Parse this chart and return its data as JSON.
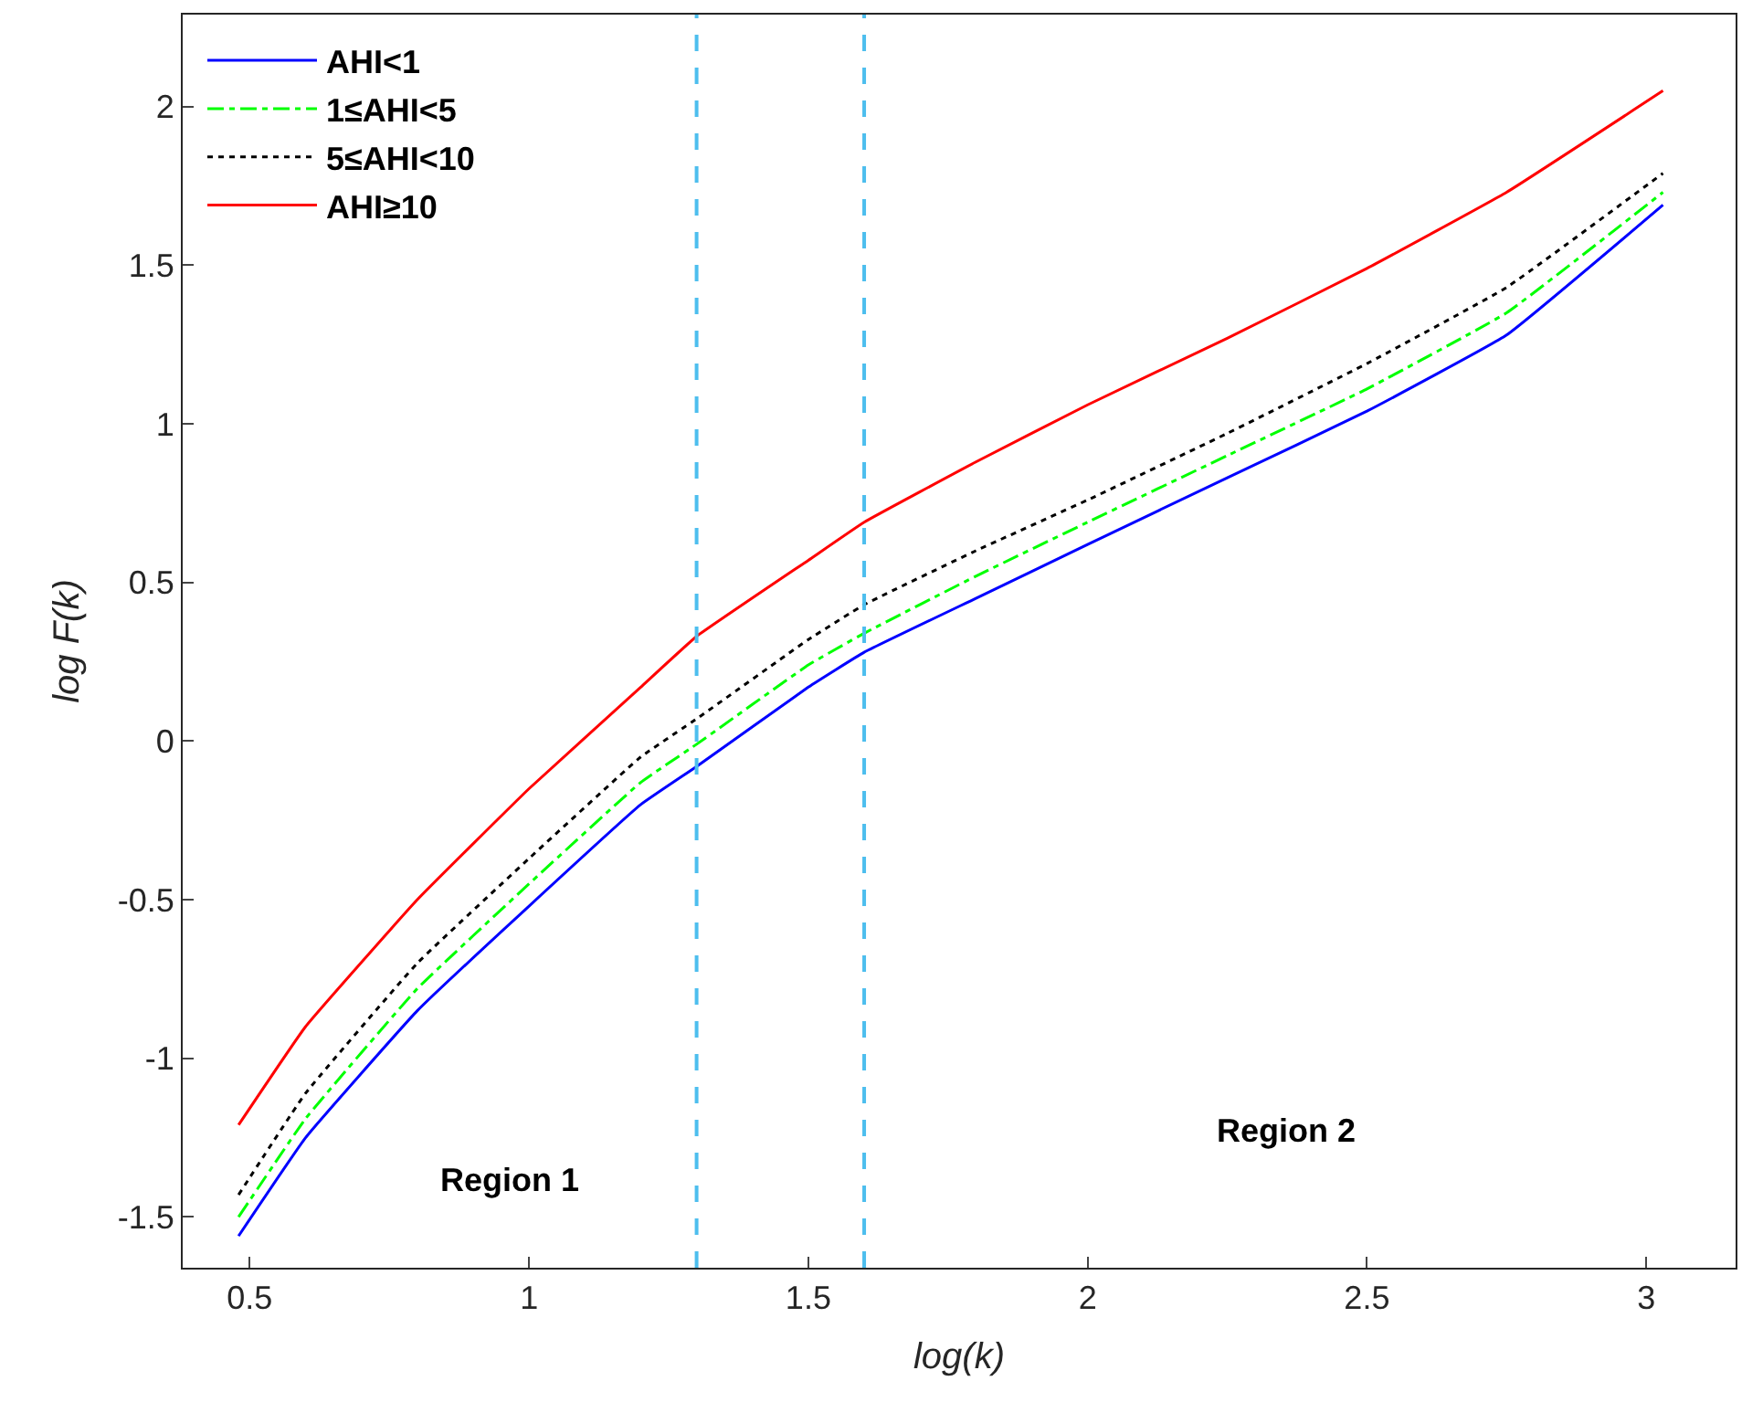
{
  "chart_data": {
    "type": "line",
    "xlabel": "log(k)",
    "ylabel": "log F(k)",
    "x": [
      0.48,
      0.6,
      0.8,
      1.0,
      1.2,
      1.3,
      1.5,
      1.6,
      1.8,
      2.0,
      2.25,
      2.5,
      2.75,
      3.03
    ],
    "series": [
      {
        "name": "AHI<1",
        "color": "#0000ff",
        "line_style": "solid",
        "values": [
          -1.56,
          -1.25,
          -0.85,
          -0.52,
          -0.2,
          -0.08,
          0.17,
          0.28,
          0.45,
          0.62,
          0.83,
          1.04,
          1.28,
          1.69
        ]
      },
      {
        "name": "1≤AHI<5",
        "color": "#00ff00",
        "line_style": "dashdot",
        "values": [
          -1.5,
          -1.19,
          -0.78,
          -0.45,
          -0.13,
          -0.01,
          0.24,
          0.34,
          0.52,
          0.69,
          0.9,
          1.11,
          1.35,
          1.73
        ]
      },
      {
        "name": "5≤AHI<10",
        "color": "#000000",
        "line_style": "dotted",
        "values": [
          -1.43,
          -1.11,
          -0.7,
          -0.37,
          -0.05,
          0.07,
          0.32,
          0.43,
          0.6,
          0.76,
          0.97,
          1.19,
          1.43,
          1.79
        ]
      },
      {
        "name": "AHI≥10",
        "color": "#ff0000",
        "line_style": "solid",
        "values": [
          -1.21,
          -0.9,
          -0.5,
          -0.15,
          0.17,
          0.33,
          0.57,
          0.69,
          0.88,
          1.06,
          1.27,
          1.49,
          1.73,
          2.05
        ]
      }
    ],
    "xlim": [
      0.38,
      3.16
    ],
    "xticks": [
      0.5,
      1,
      1.5,
      2,
      2.5,
      3
    ],
    "ylim": [
      -1.66,
      2.29
    ],
    "yticks": [
      -1.5,
      -1,
      -0.5,
      0,
      0.5,
      1,
      1.5,
      2
    ],
    "ref_lines": [
      {
        "axis": "x",
        "value": 1.3,
        "label": null,
        "color": "#4dbeee",
        "line_style": "dashed"
      },
      {
        "axis": "x",
        "value": 1.6,
        "label": null,
        "color": "#4dbeee",
        "line_style": "dashed"
      }
    ],
    "annotations": [
      "Region 1",
      "Region 2"
    ],
    "legend": "top left",
    "marker": "none"
  }
}
